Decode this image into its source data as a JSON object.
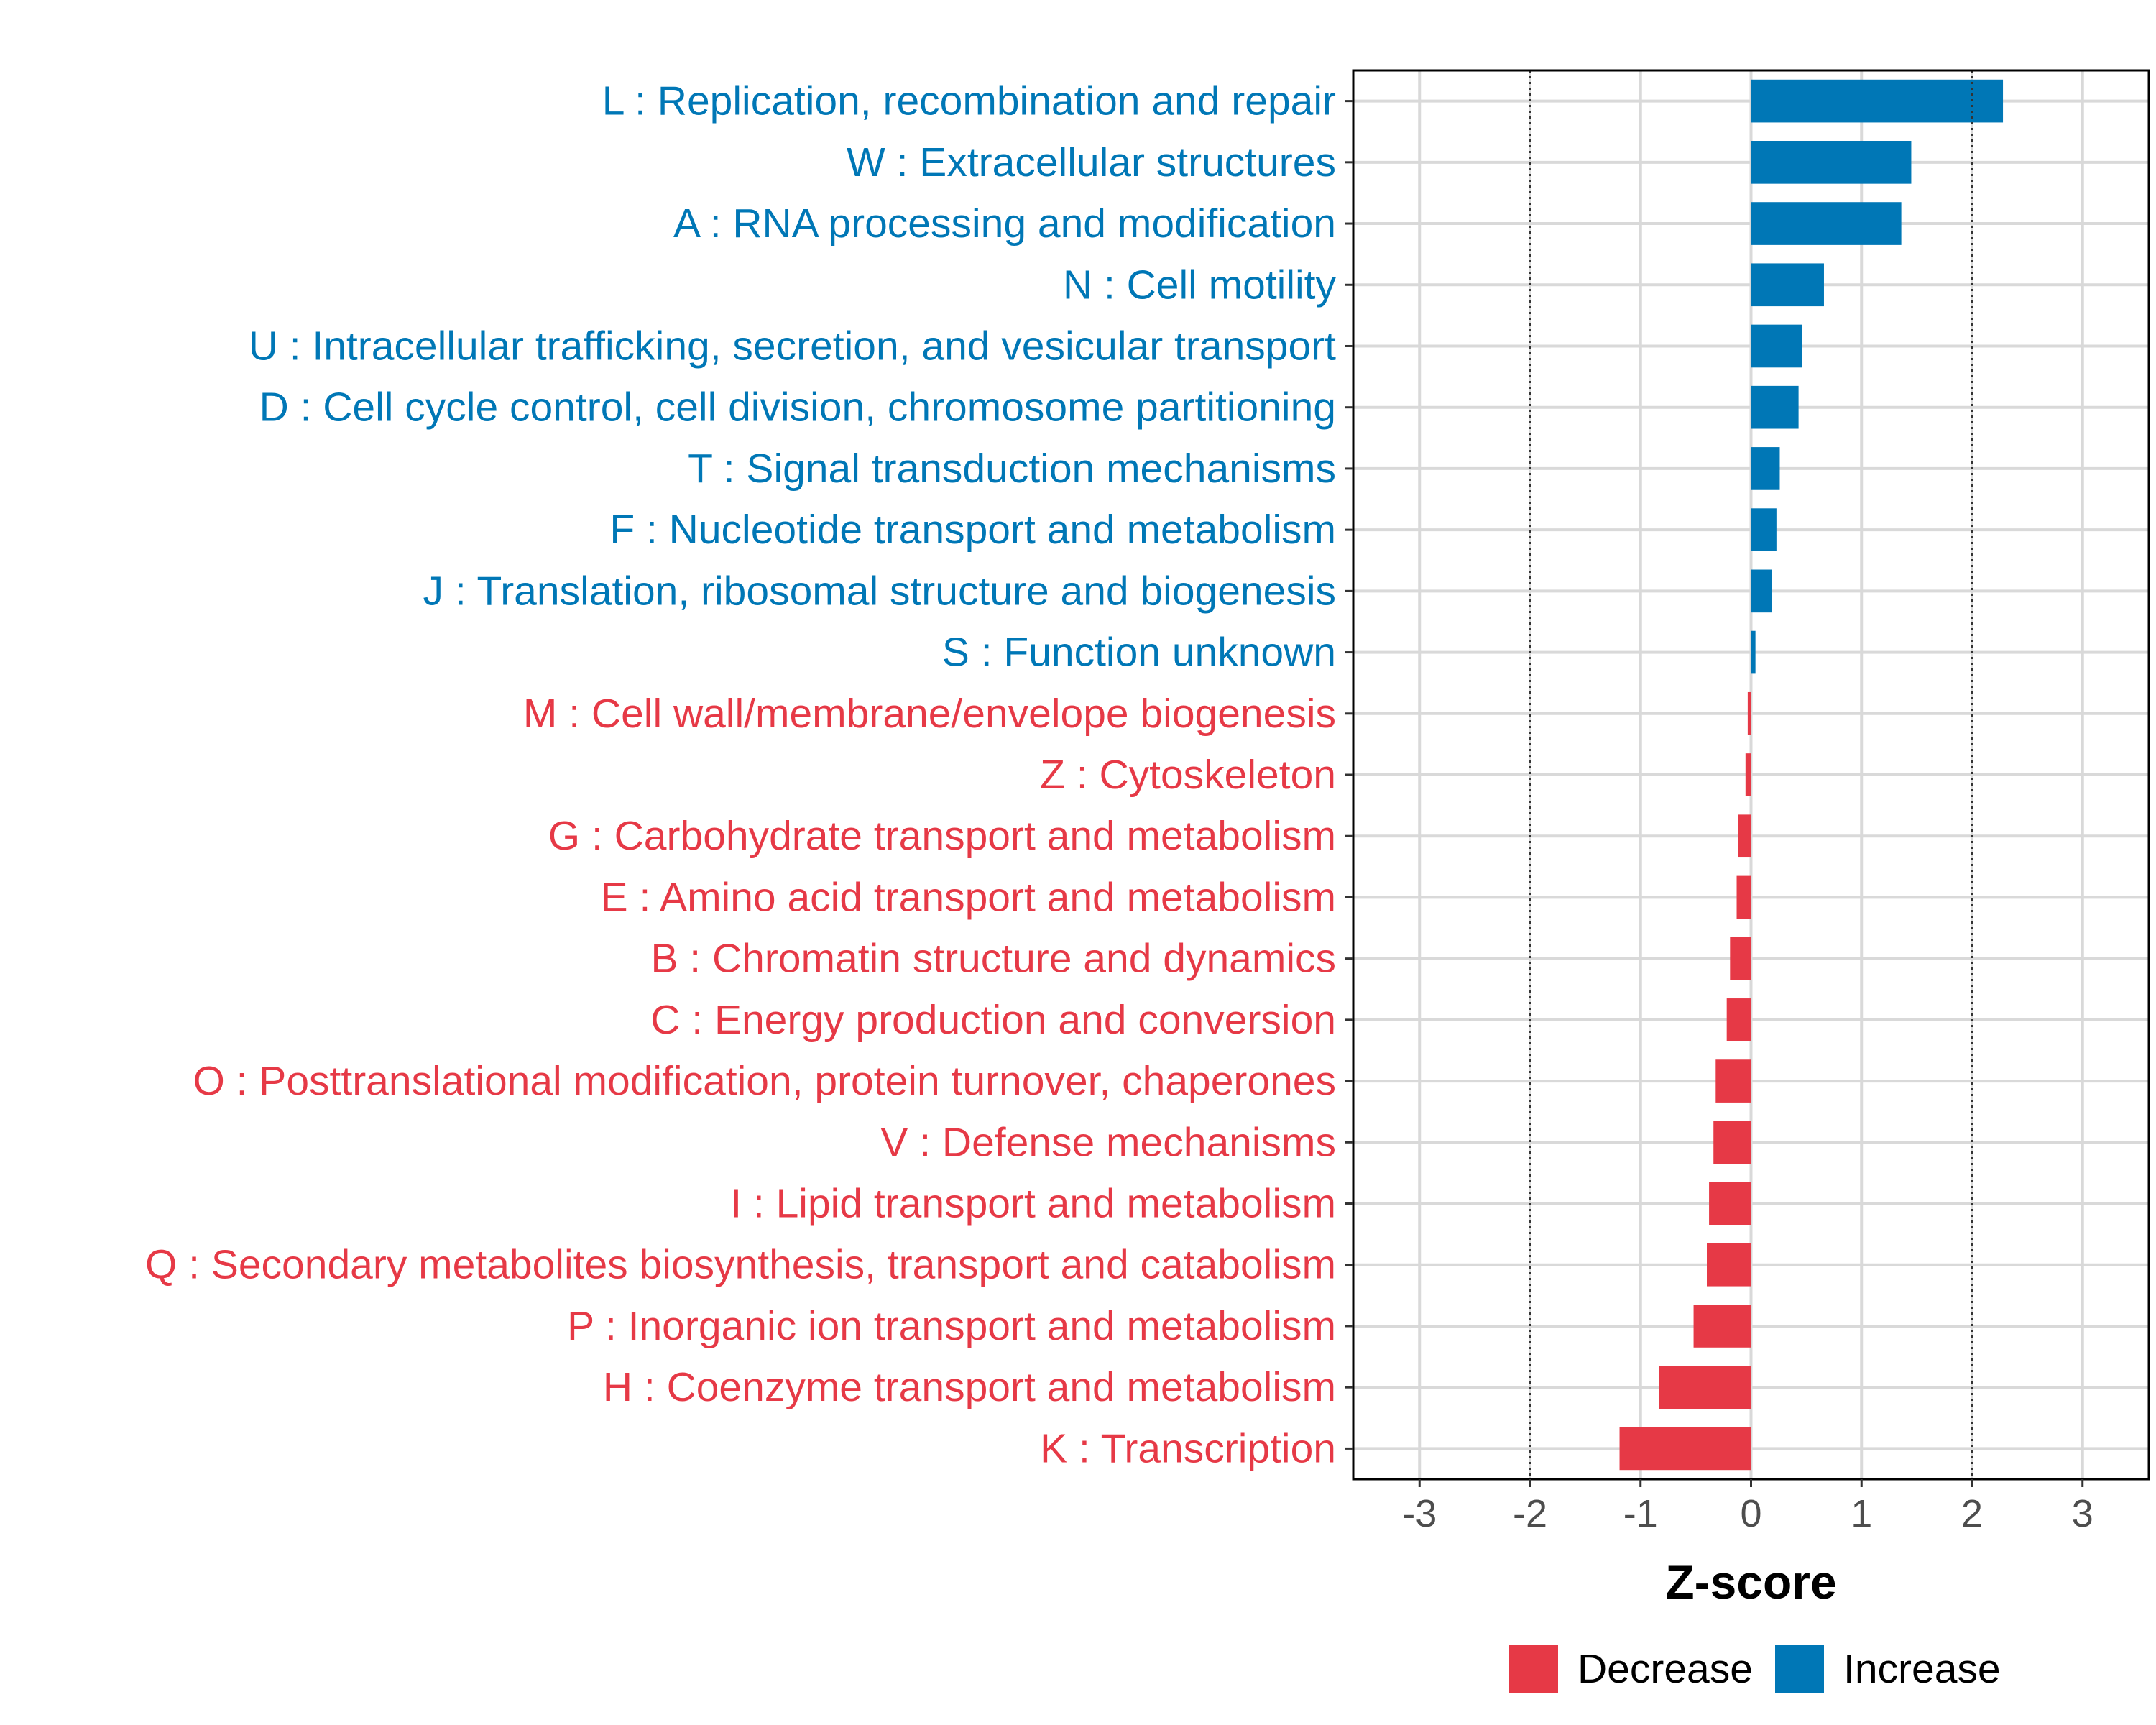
{
  "chart_data": {
    "type": "bar",
    "orientation": "horizontal",
    "title": "",
    "xlabel": "Z-score",
    "ylabel": "",
    "xlim": [
      -3.6,
      3.6
    ],
    "xticks": [
      -3,
      -2,
      -1,
      0,
      1,
      2,
      3
    ],
    "xtick_labels": [
      "-3",
      "-2",
      "-1",
      "0",
      "1",
      "2",
      "3"
    ],
    "threshold_lines": [
      -2,
      2
    ],
    "grid": true,
    "legend_position": "bottom",
    "colors": {
      "Decrease": "#e63946",
      "Increase": "#0077b6"
    },
    "legend": [
      {
        "name": "Decrease",
        "color": "#e63946"
      },
      {
        "name": "Increase",
        "color": "#0077b6"
      }
    ],
    "bars": [
      {
        "label": "L : Replication, recombination and repair",
        "value": 2.28,
        "group": "Increase"
      },
      {
        "label": "W : Extracellular structures",
        "value": 1.45,
        "group": "Increase"
      },
      {
        "label": "A : RNA processing and modification",
        "value": 1.36,
        "group": "Increase"
      },
      {
        "label": "N : Cell motility",
        "value": 0.66,
        "group": "Increase"
      },
      {
        "label": "U : Intracellular trafficking, secretion, and vesicular transport",
        "value": 0.46,
        "group": "Increase"
      },
      {
        "label": "D : Cell cycle control, cell division, chromosome partitioning",
        "value": 0.43,
        "group": "Increase"
      },
      {
        "label": "T : Signal transduction mechanisms",
        "value": 0.26,
        "group": "Increase"
      },
      {
        "label": "F : Nucleotide transport and metabolism",
        "value": 0.23,
        "group": "Increase"
      },
      {
        "label": "J : Translation, ribosomal structure and biogenesis",
        "value": 0.19,
        "group": "Increase"
      },
      {
        "label": "S : Function unknown",
        "value": 0.04,
        "group": "Increase"
      },
      {
        "label": "M : Cell wall/membrane/envelope biogenesis",
        "value": -0.03,
        "group": "Decrease"
      },
      {
        "label": "Z : Cytoskeleton",
        "value": -0.05,
        "group": "Decrease"
      },
      {
        "label": "G : Carbohydrate transport and metabolism",
        "value": -0.12,
        "group": "Decrease"
      },
      {
        "label": "E : Amino acid transport and metabolism",
        "value": -0.13,
        "group": "Decrease"
      },
      {
        "label": "B : Chromatin structure and dynamics",
        "value": -0.19,
        "group": "Decrease"
      },
      {
        "label": "C : Energy production and conversion",
        "value": -0.22,
        "group": "Decrease"
      },
      {
        "label": "O : Posttranslational modification, protein turnover, chaperones",
        "value": -0.32,
        "group": "Decrease"
      },
      {
        "label": "V : Defense mechanisms",
        "value": -0.34,
        "group": "Decrease"
      },
      {
        "label": "I : Lipid transport and metabolism",
        "value": -0.38,
        "group": "Decrease"
      },
      {
        "label": "Q : Secondary metabolites biosynthesis, transport and catabolism",
        "value": -0.4,
        "group": "Decrease"
      },
      {
        "label": "P : Inorganic ion transport and metabolism",
        "value": -0.52,
        "group": "Decrease"
      },
      {
        "label": "H : Coenzyme transport and metabolism",
        "value": -0.83,
        "group": "Decrease"
      },
      {
        "label": "K : Transcription",
        "value": -1.19,
        "group": "Decrease"
      }
    ]
  }
}
